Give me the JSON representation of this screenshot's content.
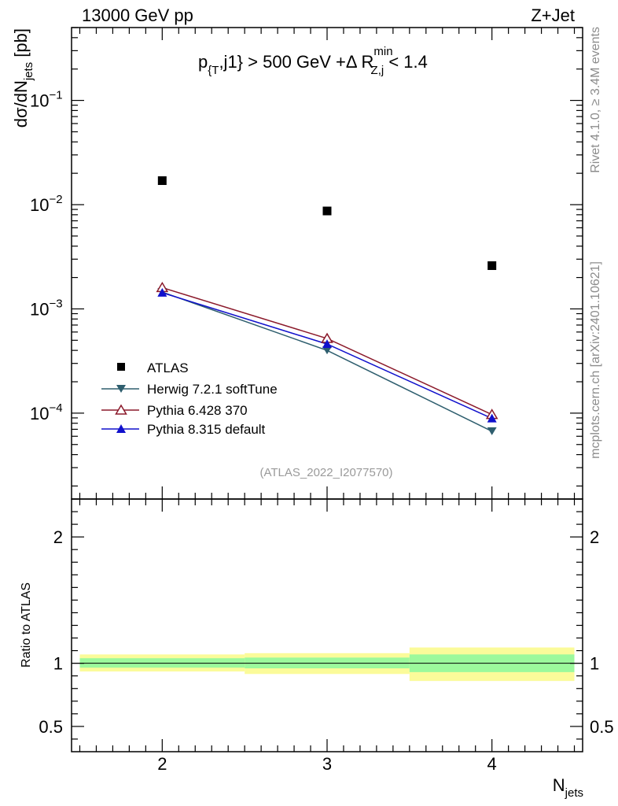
{
  "header": {
    "left": "13000 GeV pp",
    "right": "Z+Jet"
  },
  "side_labels": {
    "rivet": "Rivet 4.1.0, ≥ 3.4M events",
    "mcplots": "mcplots.cern.ch [arXiv:2401.10621]"
  },
  "chart_data": [
    {
      "type": "line",
      "panel": "main",
      "title": "p_{T},j1} > 500 GeV +Δ R_{Z,j}^{min} < 1.4",
      "title_parts": {
        "p": "p",
        "sub1": "{T",
        "mid": ",j1} > 500 GeV +Δ R",
        "sup2": "min",
        "sub2": "Z,j",
        "tail": " < 1.4"
      },
      "xlabel": "N_jets",
      "xlabel_parts": {
        "main": "N",
        "sub": "jets"
      },
      "ylabel": "dσ/dN_jets [pb]",
      "ylabel_parts": {
        "main": "dσ/dN",
        "sub": "jets",
        "unit": " [pb]"
      },
      "yscale": "log",
      "xlim": [
        1.45,
        4.55
      ],
      "ylim": [
        1.5e-05,
        0.5
      ],
      "x": [
        2,
        3,
        4
      ],
      "series": [
        {
          "name": "ATLAS",
          "marker": "square",
          "color": "#000000",
          "values": [
            0.017,
            0.0087,
            0.0026
          ]
        },
        {
          "name": "Herwig 7.2.1 softTune",
          "marker": "triangle-down",
          "color": "#2e5e6e",
          "values": [
            0.00145,
            0.0004,
            6.7e-05
          ]
        },
        {
          "name": "Pythia 6.428 370",
          "marker": "triangle-up-open",
          "color": "#8b1a2b",
          "values": [
            0.0016,
            0.00052,
            9.7e-05
          ]
        },
        {
          "name": "Pythia 8.315 default",
          "marker": "triangle-up",
          "color": "#1010cc",
          "values": [
            0.00143,
            0.00046,
            8.9e-05
          ]
        }
      ],
      "ytick_labels": [
        {
          "value": 0.1,
          "base": "10",
          "exp": "−1"
        },
        {
          "value": 0.01,
          "base": "10",
          "exp": "−2"
        },
        {
          "value": 0.001,
          "base": "10",
          "exp": "−3"
        },
        {
          "value": 0.0001,
          "base": "10",
          "exp": "−4"
        }
      ],
      "watermark": "(ATLAS_2022_I2077570)",
      "legend_position": "center-left"
    },
    {
      "type": "area",
      "panel": "ratio",
      "ylabel": "Ratio to ATLAS",
      "ylim": [
        0.3,
        2.3
      ],
      "xlim": [
        1.45,
        4.55
      ],
      "xtick_labels": [
        "2",
        "3",
        "4"
      ],
      "ytick_labels": [
        "0.5",
        "1",
        "2"
      ],
      "ytick_values": [
        0.5,
        1,
        2
      ],
      "reference_line": 1.0,
      "bands": [
        {
          "xmin": 1.5,
          "xmax": 2.5,
          "stat_lo": 0.965,
          "stat_hi": 1.04,
          "total_lo": 0.935,
          "total_hi": 1.07
        },
        {
          "xmin": 2.5,
          "xmax": 3.5,
          "stat_lo": 0.96,
          "stat_hi": 1.045,
          "total_lo": 0.915,
          "total_hi": 1.08
        },
        {
          "xmin": 3.5,
          "xmax": 4.5,
          "stat_lo": 0.93,
          "stat_hi": 1.07,
          "total_lo": 0.86,
          "total_hi": 1.125
        }
      ],
      "colors": {
        "stat": "#9cf99c",
        "total": "#fbfb9a"
      }
    }
  ]
}
